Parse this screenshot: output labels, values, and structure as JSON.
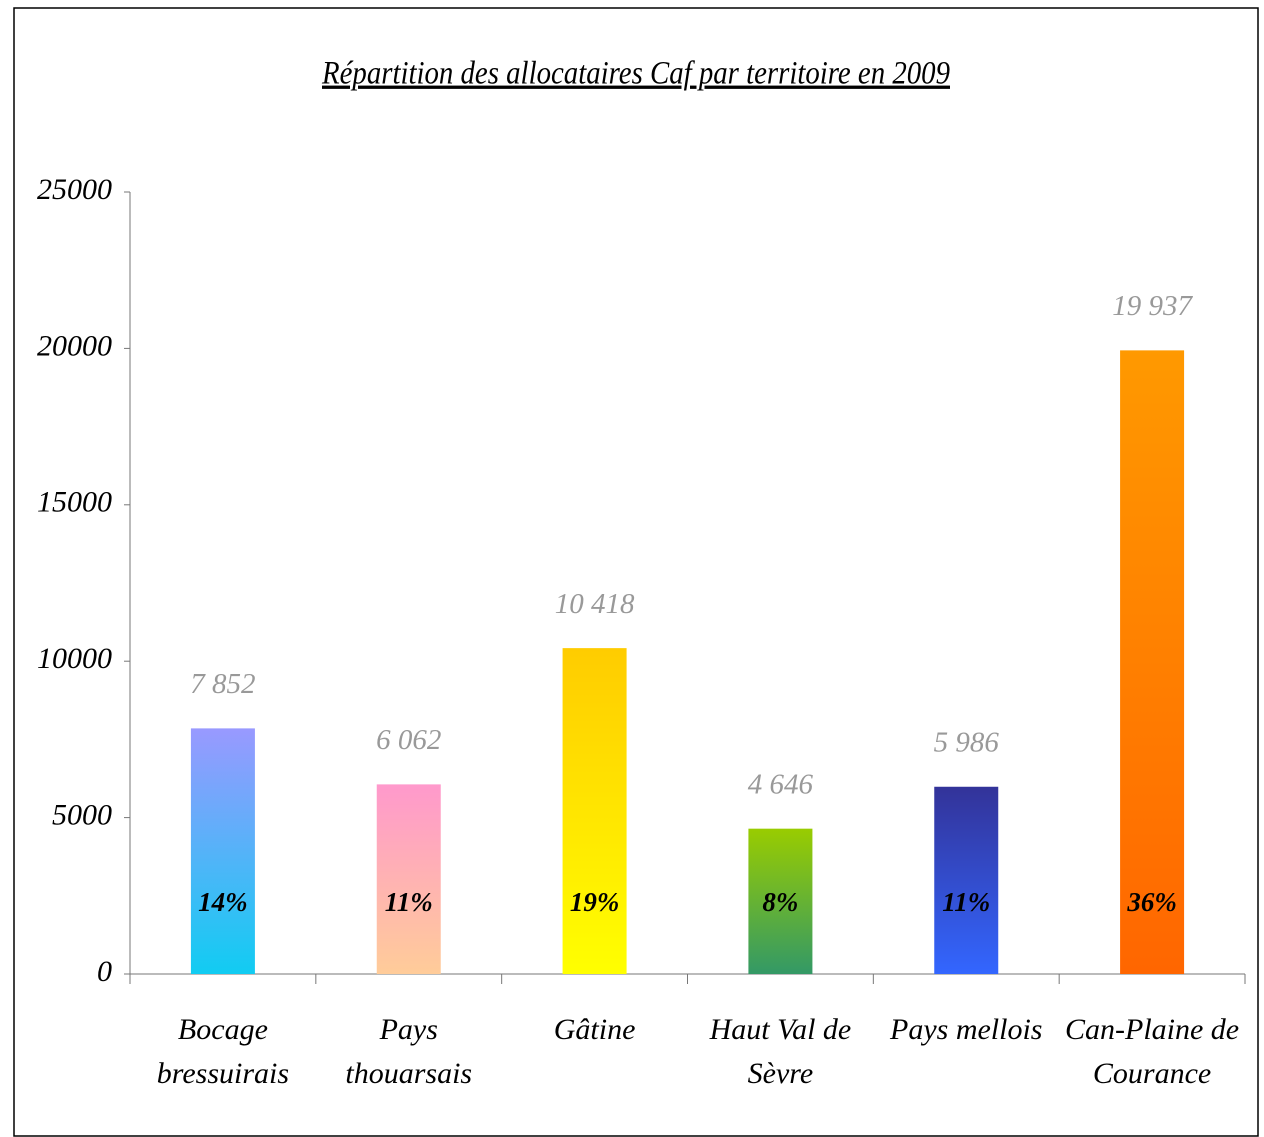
{
  "chart_data": {
    "type": "bar",
    "title": "Répartition des allocataires Caf par territoire en 2009",
    "categories": [
      "Bocage bressuirais",
      "Pays thouarsais",
      "Gâtine",
      "Haut Val de Sèvre",
      "Pays mellois",
      "Can-Plaine de Courance"
    ],
    "values": [
      7852,
      6062,
      10418,
      4646,
      5986,
      19937
    ],
    "value_labels": [
      "7 852",
      "6 062",
      "10 418",
      "4 646",
      "5 986",
      "19 937"
    ],
    "shares": [
      14,
      11,
      19,
      8,
      11,
      36
    ],
    "share_labels": [
      "14%",
      "11%",
      "19%",
      "8%",
      "11%",
      "36%"
    ],
    "colors": [
      [
        "#9999ff",
        "#11ccf2"
      ],
      [
        "#ff99cc",
        "#ffcc99"
      ],
      [
        "#ffcc00",
        "#ffff00"
      ],
      [
        "#99cc00",
        "#339966"
      ],
      [
        "#333399",
        "#3366ff"
      ],
      [
        "#ff9900",
        "#ff6600"
      ]
    ],
    "ylim": [
      0,
      25000
    ],
    "yticks": [
      0,
      5000,
      10000,
      15000,
      20000,
      25000
    ]
  }
}
